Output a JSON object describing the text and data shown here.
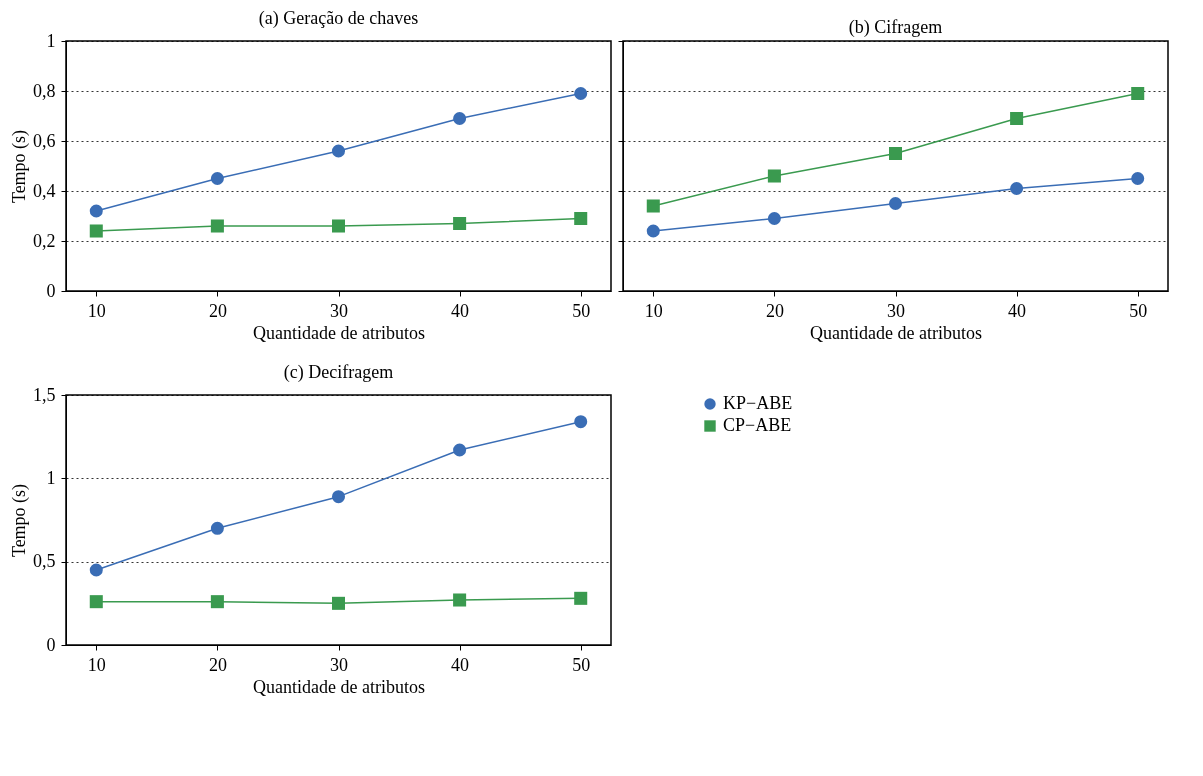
{
  "chart_data": [
    {
      "type": "line",
      "title": "(a) Geração de chaves",
      "xlabel": "Quantidade de atributos",
      "ylabel": "Tempo (s)",
      "x": [
        10,
        20,
        30,
        40,
        50
      ],
      "xlim": [
        7.5,
        52.5
      ],
      "xticks": [
        10,
        20,
        30,
        40,
        50
      ],
      "ylim": [
        0,
        1
      ],
      "yticks": [
        0,
        {
          "value": 0.2,
          "label": "0,2"
        },
        {
          "value": 0.4,
          "label": "0,4"
        },
        {
          "value": 0.6,
          "label": "0,6"
        },
        {
          "value": 0.8,
          "label": "0,8"
        },
        1
      ],
      "grid": "y",
      "series": [
        {
          "color": "#3a6db5",
          "marker": "circle",
          "values": [
            0.32,
            0.45,
            0.56,
            0.69,
            0.79
          ]
        },
        {
          "color": "#3a9a4f",
          "marker": "square",
          "values": [
            0.24,
            0.26,
            0.26,
            0.27,
            0.29
          ]
        }
      ]
    },
    {
      "type": "line",
      "title": "(b) Cifragem",
      "xlabel": "Quantidade de atributos",
      "x": [
        10,
        20,
        30,
        40,
        50
      ],
      "xlim": [
        7.5,
        52.5
      ],
      "xticks": [
        10,
        20,
        30,
        40,
        50
      ],
      "ylim": [
        0,
        1
      ],
      "yticks": [
        0,
        0.2,
        0.4,
        0.6,
        0.8,
        1
      ],
      "tick_labels": "x",
      "grid": "y",
      "series": [
        {
          "color": "#3a6db5",
          "marker": "circle",
          "values": [
            0.24,
            0.29,
            0.35,
            0.41,
            0.45
          ]
        },
        {
          "color": "#3a9a4f",
          "marker": "square",
          "values": [
            0.34,
            0.46,
            0.55,
            0.69,
            0.79
          ]
        }
      ]
    },
    {
      "type": "line",
      "title": "(c) Decifragem",
      "xlabel": "Quantidade de atributos",
      "ylabel": "Tempo (s)",
      "x": [
        10,
        20,
        30,
        40,
        50
      ],
      "xlim": [
        7.5,
        52.5
      ],
      "xticks": [
        10,
        20,
        30,
        40,
        50
      ],
      "ylim": [
        0,
        1.5
      ],
      "yticks": [
        0,
        {
          "value": 0.5,
          "label": "0,5"
        },
        1,
        {
          "value": 1.5,
          "label": "1,5"
        }
      ],
      "grid": "y",
      "legend": "right",
      "series": [
        {
          "name": "KP−ABE",
          "color": "#3a6db5",
          "marker": "circle",
          "values": [
            0.45,
            0.7,
            0.89,
            1.17,
            1.34
          ]
        },
        {
          "name": "CP−ABE",
          "color": "#3a9a4f",
          "marker": "square",
          "values": [
            0.26,
            0.26,
            0.25,
            0.27,
            0.28
          ]
        }
      ]
    }
  ]
}
